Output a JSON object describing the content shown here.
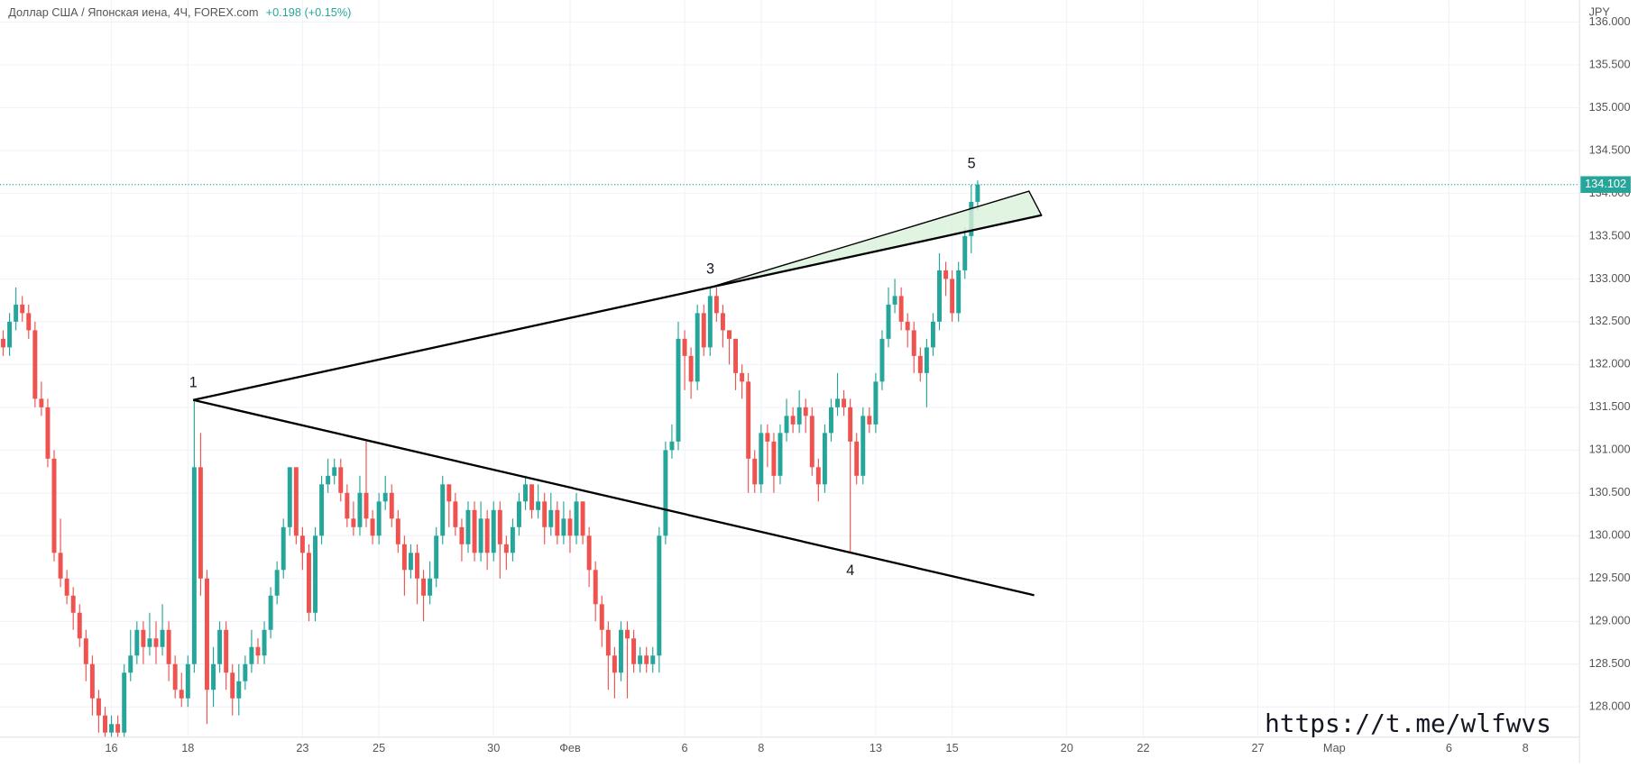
{
  "header": {
    "title": "Доллар США / Японская иена, 4Ч, FOREX.com",
    "change": "+0.198 (+0.15%)",
    "currency": "JPY"
  },
  "wave_labels": [
    "1",
    "3",
    "4",
    "5"
  ],
  "watermark": "https://t.me/wlfwvs",
  "chart_data": {
    "type": "candlestick",
    "up_color": "#26a69a",
    "down_color": "#ef5350",
    "grid": true,
    "xlim": [
      -0.5,
      247.5
    ],
    "xticks": [
      {
        "value": 17,
        "label": "16"
      },
      {
        "value": 29,
        "label": "18"
      },
      {
        "value": 47,
        "label": "23"
      },
      {
        "value": 59,
        "label": "25"
      },
      {
        "value": 77,
        "label": "30"
      },
      {
        "value": 89,
        "label": "Фев"
      },
      {
        "value": 107,
        "label": "6"
      },
      {
        "value": 119,
        "label": "8"
      },
      {
        "value": 137,
        "label": "13"
      },
      {
        "value": 149,
        "label": "15"
      },
      {
        "value": 167,
        "label": "20"
      },
      {
        "value": 179,
        "label": "22"
      },
      {
        "value": 197,
        "label": "27"
      },
      {
        "value": 209,
        "label": "Мар"
      },
      {
        "value": 227,
        "label": "6"
      },
      {
        "value": 239,
        "label": "8"
      }
    ],
    "ylim": [
      127.646,
      136.256
    ],
    "yticks": [
      {
        "value": 128,
        "label": "128.000"
      },
      {
        "value": 128.5,
        "label": "128.500"
      },
      {
        "value": 129,
        "label": "129.000"
      },
      {
        "value": 129.5,
        "label": "129.500"
      },
      {
        "value": 130,
        "label": "130.000"
      },
      {
        "value": 130.5,
        "label": "130.500"
      },
      {
        "value": 131,
        "label": "131.000"
      },
      {
        "value": 131.5,
        "label": "131.500"
      },
      {
        "value": 132,
        "label": "132.000"
      },
      {
        "value": 132.5,
        "label": "132.500"
      },
      {
        "value": 133,
        "label": "133.000"
      },
      {
        "value": 133.5,
        "label": "133.500"
      },
      {
        "value": 134,
        "label": "134.000"
      },
      {
        "value": 134.5,
        "label": "134.500"
      },
      {
        "value": 135,
        "label": "135.000"
      },
      {
        "value": 135.5,
        "label": "135.500"
      },
      {
        "value": 136,
        "label": "136.000"
      }
    ],
    "ohlc": [
      [
        132.3,
        132.4,
        132.1,
        132.2
      ],
      [
        132.2,
        132.6,
        132.1,
        132.5
      ],
      [
        132.5,
        132.9,
        132.4,
        132.7
      ],
      [
        132.7,
        132.8,
        132.5,
        132.6
      ],
      [
        132.6,
        132.7,
        132.3,
        132.4
      ],
      [
        132.4,
        132.5,
        131.5,
        131.6
      ],
      [
        131.6,
        131.8,
        131.4,
        131.5
      ],
      [
        131.5,
        131.6,
        130.8,
        130.9
      ],
      [
        130.9,
        131.0,
        129.7,
        129.8
      ],
      [
        129.8,
        130.2,
        129.4,
        129.5
      ],
      [
        129.5,
        129.6,
        129.2,
        129.3
      ],
      [
        129.3,
        129.4,
        128.9,
        129.1
      ],
      [
        129.1,
        129.2,
        128.7,
        128.8
      ],
      [
        128.8,
        128.9,
        128.3,
        128.5
      ],
      [
        128.5,
        128.6,
        127.9,
        128.1
      ],
      [
        128.1,
        128.2,
        127.7,
        127.9
      ],
      [
        127.9,
        128.0,
        127.6,
        127.7
      ],
      [
        127.7,
        127.9,
        127.6,
        127.8
      ],
      [
        127.8,
        127.9,
        127.6,
        127.7
      ],
      [
        127.7,
        128.5,
        127.6,
        128.4
      ],
      [
        128.4,
        128.9,
        128.3,
        128.6
      ],
      [
        128.6,
        129.0,
        128.5,
        128.9
      ],
      [
        128.9,
        129.0,
        128.5,
        128.7
      ],
      [
        128.7,
        129.1,
        128.6,
        128.8
      ],
      [
        128.8,
        129.0,
        128.5,
        128.7
      ],
      [
        128.7,
        129.2,
        128.6,
        128.9
      ],
      [
        128.9,
        129.0,
        128.3,
        128.5
      ],
      [
        128.5,
        128.6,
        128.1,
        128.2
      ],
      [
        128.2,
        128.4,
        128.0,
        128.1
      ],
      [
        128.1,
        128.6,
        128.0,
        128.5
      ],
      [
        128.5,
        131.6,
        128.4,
        130.8
      ],
      [
        130.8,
        131.2,
        129.3,
        129.5
      ],
      [
        129.5,
        129.6,
        127.8,
        128.2
      ],
      [
        128.2,
        128.7,
        128.0,
        128.5
      ],
      [
        128.5,
        129.0,
        128.4,
        128.9
      ],
      [
        128.9,
        129.0,
        128.2,
        128.4
      ],
      [
        128.4,
        128.5,
        127.9,
        128.1
      ],
      [
        128.1,
        128.5,
        127.9,
        128.3
      ],
      [
        128.3,
        128.6,
        128.2,
        128.5
      ],
      [
        128.5,
        128.9,
        128.4,
        128.7
      ],
      [
        128.7,
        128.8,
        128.5,
        128.6
      ],
      [
        128.6,
        129.0,
        128.5,
        128.9
      ],
      [
        128.9,
        129.4,
        128.8,
        129.3
      ],
      [
        129.3,
        129.7,
        129.2,
        129.6
      ],
      [
        129.6,
        130.2,
        129.5,
        130.1
      ],
      [
        130.1,
        130.8,
        130.0,
        130.8
      ],
      [
        130.8,
        130.8,
        129.9,
        130.0
      ],
      [
        130.0,
        130.1,
        129.6,
        129.8
      ],
      [
        129.8,
        129.9,
        129.0,
        129.1
      ],
      [
        129.1,
        130.1,
        129.0,
        130.0
      ],
      [
        130.0,
        130.7,
        129.9,
        130.6
      ],
      [
        130.6,
        130.9,
        130.5,
        130.7
      ],
      [
        130.7,
        130.9,
        130.6,
        130.8
      ],
      [
        130.8,
        130.9,
        130.4,
        130.5
      ],
      [
        130.5,
        130.6,
        130.1,
        130.2
      ],
      [
        130.2,
        130.4,
        130.0,
        130.1
      ],
      [
        130.1,
        130.7,
        130.0,
        130.5
      ],
      [
        130.5,
        131.1,
        130.1,
        130.2
      ],
      [
        130.2,
        130.3,
        129.9,
        130.0
      ],
      [
        130.0,
        130.5,
        129.9,
        130.4
      ],
      [
        130.4,
        130.7,
        130.3,
        130.5
      ],
      [
        130.5,
        130.6,
        130.1,
        130.2
      ],
      [
        130.2,
        130.3,
        129.8,
        129.9
      ],
      [
        129.9,
        130.0,
        129.3,
        129.6
      ],
      [
        129.6,
        129.9,
        129.5,
        129.8
      ],
      [
        129.8,
        129.9,
        129.2,
        129.5
      ],
      [
        129.5,
        129.6,
        129.0,
        129.3
      ],
      [
        129.3,
        129.7,
        129.2,
        129.5
      ],
      [
        129.5,
        130.1,
        129.4,
        130.0
      ],
      [
        130.0,
        130.7,
        129.9,
        130.6
      ],
      [
        130.6,
        130.6,
        130.1,
        130.4
      ],
      [
        130.4,
        130.5,
        130.0,
        130.1
      ],
      [
        130.1,
        130.2,
        129.7,
        129.9
      ],
      [
        129.9,
        130.4,
        129.8,
        130.3
      ],
      [
        130.3,
        130.4,
        129.7,
        129.8
      ],
      [
        129.8,
        130.4,
        129.7,
        130.2
      ],
      [
        130.2,
        130.3,
        129.6,
        129.8
      ],
      [
        129.8,
        130.4,
        129.7,
        130.3
      ],
      [
        130.3,
        130.4,
        129.5,
        129.9
      ],
      [
        129.9,
        130.0,
        129.6,
        129.8
      ],
      [
        129.8,
        130.2,
        129.7,
        130.1
      ],
      [
        130.1,
        130.5,
        130.0,
        130.4
      ],
      [
        130.4,
        130.7,
        130.3,
        130.6
      ],
      [
        130.6,
        130.6,
        130.2,
        130.3
      ],
      [
        130.3,
        130.6,
        130.2,
        130.4
      ],
      [
        130.4,
        130.5,
        129.9,
        130.1
      ],
      [
        130.1,
        130.5,
        130.0,
        130.3
      ],
      [
        130.3,
        130.4,
        129.9,
        130.0
      ],
      [
        130.0,
        130.4,
        129.9,
        130.2
      ],
      [
        130.2,
        130.3,
        129.8,
        130.0
      ],
      [
        130.0,
        130.5,
        129.9,
        130.4
      ],
      [
        130.4,
        130.4,
        129.9,
        130.0
      ],
      [
        130.0,
        130.1,
        129.4,
        129.6
      ],
      [
        129.6,
        129.7,
        129.0,
        129.2
      ],
      [
        129.2,
        129.3,
        128.7,
        128.9
      ],
      [
        128.9,
        129.0,
        128.2,
        128.6
      ],
      [
        128.6,
        128.7,
        128.1,
        128.4
      ],
      [
        128.4,
        129.0,
        128.3,
        128.9
      ],
      [
        128.9,
        129.0,
        128.1,
        128.8
      ],
      [
        128.8,
        128.9,
        128.4,
        128.5
      ],
      [
        128.5,
        128.7,
        128.4,
        128.6
      ],
      [
        128.6,
        128.7,
        128.4,
        128.5
      ],
      [
        128.5,
        128.7,
        128.4,
        128.6
      ],
      [
        128.6,
        130.1,
        128.4,
        130.0
      ],
      [
        130.0,
        131.1,
        129.9,
        131.0
      ],
      [
        131.0,
        131.3,
        130.9,
        131.1
      ],
      [
        131.1,
        132.5,
        131.0,
        132.3
      ],
      [
        132.3,
        132.4,
        131.7,
        132.1
      ],
      [
        132.1,
        132.2,
        131.6,
        131.8
      ],
      [
        131.8,
        132.7,
        131.7,
        132.6
      ],
      [
        132.6,
        132.7,
        132.1,
        132.2
      ],
      [
        132.2,
        132.9,
        132.1,
        132.8
      ],
      [
        132.8,
        132.9,
        132.5,
        132.6
      ],
      [
        132.6,
        132.7,
        132.2,
        132.4
      ],
      [
        132.4,
        132.4,
        132.0,
        132.3
      ],
      [
        132.3,
        132.3,
        131.7,
        131.9
      ],
      [
        131.9,
        132.0,
        131.6,
        131.8
      ],
      [
        131.8,
        131.9,
        130.5,
        130.9
      ],
      [
        130.9,
        131.0,
        130.5,
        130.6
      ],
      [
        130.6,
        131.3,
        130.5,
        131.2
      ],
      [
        131.2,
        131.3,
        130.8,
        131.1
      ],
      [
        131.1,
        131.2,
        130.5,
        130.7
      ],
      [
        130.7,
        131.3,
        130.6,
        131.2
      ],
      [
        131.2,
        131.6,
        131.1,
        131.4
      ],
      [
        131.4,
        131.5,
        131.2,
        131.3
      ],
      [
        131.3,
        131.7,
        131.2,
        131.5
      ],
      [
        131.5,
        131.6,
        131.2,
        131.4
      ],
      [
        131.4,
        131.5,
        130.7,
        130.8
      ],
      [
        130.8,
        130.9,
        130.4,
        130.6
      ],
      [
        130.6,
        131.3,
        130.5,
        131.2
      ],
      [
        131.2,
        131.6,
        131.1,
        131.5
      ],
      [
        131.5,
        131.9,
        131.4,
        131.6
      ],
      [
        131.6,
        131.7,
        131.4,
        131.5
      ],
      [
        131.5,
        131.6,
        129.8,
        131.1
      ],
      [
        131.1,
        131.2,
        130.6,
        130.7
      ],
      [
        130.7,
        131.5,
        130.6,
        131.4
      ],
      [
        131.4,
        131.5,
        131.2,
        131.3
      ],
      [
        131.3,
        131.9,
        131.2,
        131.8
      ],
      [
        131.8,
        132.4,
        131.7,
        132.3
      ],
      [
        132.3,
        132.9,
        132.2,
        132.7
      ],
      [
        132.7,
        133.0,
        132.6,
        132.8
      ],
      [
        132.8,
        132.9,
        132.4,
        132.5
      ],
      [
        132.5,
        132.6,
        132.2,
        132.4
      ],
      [
        132.4,
        132.5,
        131.9,
        132.1
      ],
      [
        132.1,
        132.2,
        131.8,
        131.9
      ],
      [
        131.9,
        132.3,
        131.5,
        132.2
      ],
      [
        132.2,
        132.6,
        132.1,
        132.5
      ],
      [
        132.5,
        133.3,
        132.4,
        133.1
      ],
      [
        133.1,
        133.2,
        132.8,
        133.0
      ],
      [
        133.0,
        133.1,
        132.5,
        132.6
      ],
      [
        132.6,
        133.2,
        132.5,
        133.1
      ],
      [
        133.1,
        133.6,
        133.0,
        133.5
      ],
      [
        133.5,
        134.1,
        133.3,
        133.9
      ],
      [
        133.9,
        134.15,
        133.8,
        134.102
      ]
    ]
  }
}
